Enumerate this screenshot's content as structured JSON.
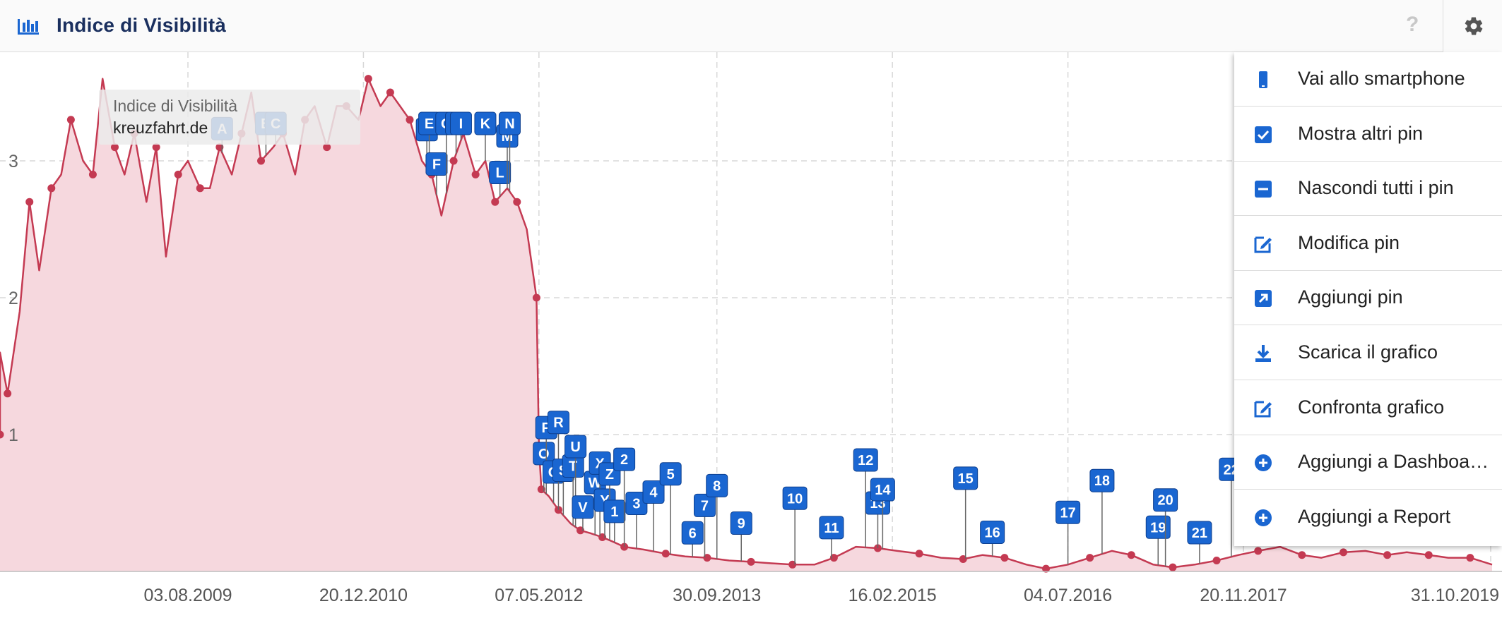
{
  "header": {
    "title": "Indice di Visibilità",
    "help_label": "?"
  },
  "tooltip": {
    "title": "Indice di Visibilità",
    "domain": "kreuzfahrt.de"
  },
  "menu": {
    "items": [
      {
        "label": "Vai allo smartphone",
        "icon": "smartphone-icon"
      },
      {
        "label": "Mostra altri pin",
        "icon": "checkbox-icon"
      },
      {
        "label": "Nascondi tutti i pin",
        "icon": "minus-box-icon"
      },
      {
        "label": "Modifica pin",
        "icon": "edit-icon"
      },
      {
        "label": "Aggiungi pin",
        "icon": "arrow-out-icon"
      },
      {
        "label": "Scarica il grafico",
        "icon": "download-icon"
      },
      {
        "label": "Confronta grafico",
        "icon": "edit-icon"
      },
      {
        "label": "Aggiungi a Dashboa…",
        "icon": "plus-circle-icon"
      },
      {
        "label": "Aggiungi a Report",
        "icon": "plus-circle-icon"
      }
    ]
  },
  "colors": {
    "line": "#c43a52",
    "area": "#f6d8de",
    "pin": "#1a66d1",
    "title": "#1a2f5e"
  },
  "chart_data": {
    "type": "area",
    "xlabel": "",
    "ylabel": "",
    "ylim": [
      0,
      3.8
    ],
    "y_ticks": [
      1,
      2,
      3
    ],
    "x_tick_labels": [
      "03.08.2009",
      "20.12.2010",
      "07.05.2012",
      "30.09.2013",
      "16.02.2015",
      "04.07.2016",
      "20.11.2017",
      "31.10.2019"
    ],
    "x_tick_dates": [
      "2009-08-03",
      "2010-12-20",
      "2012-05-07",
      "2013-09-30",
      "2015-02-16",
      "2016-07-04",
      "2017-11-20",
      "2019-10-31"
    ],
    "grid": true,
    "series": [
      {
        "x": [
          "2008-01-07",
          "2008-02-04",
          "2008-03-03",
          "2008-04-07",
          "2008-05-05",
          "2008-06-02",
          "2008-07-07",
          "2008-08-04",
          "2008-09-01",
          "2008-10-06",
          "2008-11-03",
          "2008-12-01",
          "2009-01-05",
          "2009-02-02",
          "2009-03-02",
          "2009-04-06",
          "2009-05-04",
          "2009-06-01",
          "2009-07-06",
          "2009-08-03",
          "2009-09-07",
          "2009-10-05",
          "2009-11-02",
          "2009-12-07",
          "2010-01-04",
          "2010-02-01",
          "2010-03-01",
          "2010-04-05",
          "2010-05-03",
          "2010-06-07",
          "2010-07-05",
          "2010-08-02",
          "2010-09-06",
          "2010-10-04",
          "2010-11-01",
          "2010-12-06",
          "2011-01-03",
          "2011-02-07",
          "2011-03-07",
          "2011-04-04",
          "2011-05-02",
          "2011-06-06",
          "2011-07-04",
          "2011-08-01",
          "2011-09-05",
          "2011-10-03",
          "2011-11-07",
          "2011-12-05",
          "2012-01-02",
          "2012-02-06",
          "2012-03-05",
          "2012-04-02",
          "2012-04-30",
          "2012-05-07",
          "2012-05-14",
          "2012-06-04",
          "2012-07-02",
          "2012-08-06",
          "2012-09-03",
          "2012-10-01",
          "2012-11-05",
          "2012-12-03",
          "2013-01-07",
          "2013-03-04",
          "2013-05-06",
          "2013-07-01",
          "2013-09-02",
          "2013-11-04",
          "2014-01-06",
          "2014-03-03",
          "2014-05-05",
          "2014-07-07",
          "2014-09-01",
          "2014-11-03",
          "2015-01-05",
          "2015-03-02",
          "2015-05-04",
          "2015-07-06",
          "2015-09-07",
          "2015-11-02",
          "2016-01-04",
          "2016-03-07",
          "2016-05-02",
          "2016-07-04",
          "2016-09-05",
          "2016-11-07",
          "2017-01-02",
          "2017-03-06",
          "2017-05-01",
          "2017-07-03",
          "2017-09-04",
          "2017-11-06",
          "2018-01-01",
          "2018-03-05",
          "2018-05-07",
          "2018-07-02",
          "2018-09-03",
          "2018-11-05",
          "2019-01-07",
          "2019-03-04",
          "2019-05-06",
          "2019-07-01",
          "2019-09-02",
          "2019-11-04"
        ],
        "y": [
          1.0,
          1.6,
          1.3,
          1.9,
          2.7,
          2.2,
          2.8,
          2.9,
          3.3,
          3.0,
          2.9,
          3.6,
          3.1,
          2.9,
          3.2,
          2.7,
          3.1,
          2.3,
          2.9,
          3.0,
          2.8,
          2.8,
          3.1,
          2.9,
          3.2,
          3.5,
          3.0,
          3.1,
          3.2,
          2.9,
          3.3,
          3.4,
          3.1,
          3.4,
          3.4,
          3.3,
          3.6,
          3.4,
          3.5,
          3.4,
          3.3,
          3.0,
          2.9,
          2.6,
          3.0,
          3.2,
          2.9,
          3.0,
          2.7,
          2.8,
          2.7,
          2.5,
          2.0,
          0.9,
          0.6,
          0.55,
          0.45,
          0.35,
          0.3,
          0.28,
          0.25,
          0.22,
          0.18,
          0.16,
          0.13,
          0.11,
          0.1,
          0.08,
          0.07,
          0.06,
          0.05,
          0.05,
          0.1,
          0.18,
          0.17,
          0.15,
          0.13,
          0.1,
          0.09,
          0.12,
          0.1,
          0.05,
          0.02,
          0.05,
          0.1,
          0.15,
          0.12,
          0.05,
          0.03,
          0.05,
          0.08,
          0.12,
          0.15,
          0.18,
          0.12,
          0.1,
          0.14,
          0.15,
          0.12,
          0.14,
          0.12,
          0.1,
          0.1,
          0.05
        ]
      }
    ],
    "pins": [
      {
        "label": "A",
        "x": "2009-11-09"
      },
      {
        "label": "B",
        "x": "2010-03-15"
      },
      {
        "label": "C",
        "x": "2010-04-12"
      },
      {
        "label": "D",
        "x": "2011-06-20"
      },
      {
        "label": "E",
        "x": "2011-06-27"
      },
      {
        "label": "F",
        "x": "2011-07-18"
      },
      {
        "label": "G",
        "x": "2011-08-15"
      },
      {
        "label": "H",
        "x": "2011-09-12"
      },
      {
        "label": "I",
        "x": "2011-09-26"
      },
      {
        "label": "K",
        "x": "2011-12-05"
      },
      {
        "label": "L",
        "x": "2012-01-16"
      },
      {
        "label": "M",
        "x": "2012-02-06"
      },
      {
        "label": "N",
        "x": "2012-02-13"
      },
      {
        "label": "O",
        "x": "2012-05-21"
      },
      {
        "label": "P",
        "x": "2012-05-28"
      },
      {
        "label": "Q",
        "x": "2012-06-18"
      },
      {
        "label": "R",
        "x": "2012-07-02"
      },
      {
        "label": "S",
        "x": "2012-07-16"
      },
      {
        "label": "T",
        "x": "2012-08-13"
      },
      {
        "label": "U",
        "x": "2012-08-20"
      },
      {
        "label": "V",
        "x": "2012-09-10"
      },
      {
        "label": "W",
        "x": "2012-10-15"
      },
      {
        "label": "X",
        "x": "2012-10-29"
      },
      {
        "label": "Y",
        "x": "2012-11-12"
      },
      {
        "label": "Z",
        "x": "2012-11-26"
      },
      {
        "label": "1",
        "x": "2012-12-10"
      },
      {
        "label": "2",
        "x": "2013-01-07"
      },
      {
        "label": "3",
        "x": "2013-02-11"
      },
      {
        "label": "4",
        "x": "2013-04-01"
      },
      {
        "label": "5",
        "x": "2013-05-20"
      },
      {
        "label": "6",
        "x": "2013-07-22"
      },
      {
        "label": "7",
        "x": "2013-08-26"
      },
      {
        "label": "8",
        "x": "2013-09-30"
      },
      {
        "label": "9",
        "x": "2013-12-09"
      },
      {
        "label": "10",
        "x": "2014-05-12"
      },
      {
        "label": "11",
        "x": "2014-08-25"
      },
      {
        "label": "12",
        "x": "2014-12-01"
      },
      {
        "label": "13",
        "x": "2015-01-05"
      },
      {
        "label": "14",
        "x": "2015-01-19"
      },
      {
        "label": "15",
        "x": "2015-09-14"
      },
      {
        "label": "16",
        "x": "2015-11-30"
      },
      {
        "label": "17",
        "x": "2016-07-04"
      },
      {
        "label": "18",
        "x": "2016-10-10"
      },
      {
        "label": "19",
        "x": "2017-03-20"
      },
      {
        "label": "20",
        "x": "2017-04-10"
      },
      {
        "label": "21",
        "x": "2017-07-17"
      },
      {
        "label": "22",
        "x": "2017-10-16"
      }
    ]
  }
}
